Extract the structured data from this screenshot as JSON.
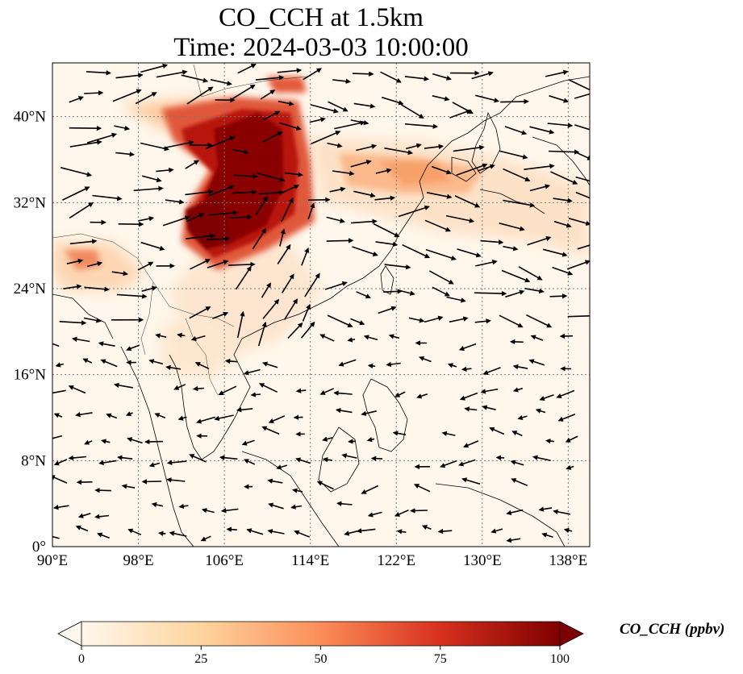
{
  "title": {
    "line1": "CO_CCH at 1.5km",
    "line2": "Time: 2024-03-03 10:00:00"
  },
  "map": {
    "extent": {
      "lon": [
        90,
        140
      ],
      "lat": [
        0,
        45
      ]
    },
    "lon_ticks": [
      {
        "value": 90,
        "label": "90°E"
      },
      {
        "value": 98,
        "label": "98°E"
      },
      {
        "value": 106,
        "label": "106°E"
      },
      {
        "value": 114,
        "label": "114°E"
      },
      {
        "value": 122,
        "label": "122°E"
      },
      {
        "value": 130,
        "label": "130°E"
      },
      {
        "value": 138,
        "label": "138°E"
      }
    ],
    "lat_ticks": [
      {
        "value": 0,
        "label": "0°"
      },
      {
        "value": 8,
        "label": "8°N"
      },
      {
        "value": 16,
        "label": "16°N"
      },
      {
        "value": 24,
        "label": "24°N"
      },
      {
        "value": 32,
        "label": "32°N"
      },
      {
        "value": 40,
        "label": "40°N"
      }
    ],
    "gridlines": true
  },
  "colorbar": {
    "label": "CO_CCH (ppbv)",
    "ticks": [
      {
        "value": 0,
        "label": "0"
      },
      {
        "value": 25,
        "label": "25"
      },
      {
        "value": 50,
        "label": "50"
      },
      {
        "value": 75,
        "label": "75"
      },
      {
        "value": 100,
        "label": "100"
      }
    ],
    "range": [
      0,
      100
    ],
    "extend": "both",
    "colormap": "OrRd",
    "colors": [
      "#fff7ec",
      "#fdd49e",
      "#fc8d59",
      "#d7301f",
      "#7f0000"
    ]
  }
}
